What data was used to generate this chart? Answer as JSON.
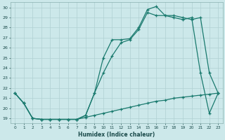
{
  "xlabel": "Humidex (Indice chaleur)",
  "ylabel": "",
  "background_color": "#cce8ea",
  "line_color": "#1a7a6e",
  "grid_color": "#b0d0d2",
  "xlim": [
    -0.5,
    23.5
  ],
  "ylim": [
    18.5,
    30.5
  ],
  "yticks": [
    19,
    20,
    21,
    22,
    23,
    24,
    25,
    26,
    27,
    28,
    29,
    30
  ],
  "xticks": [
    0,
    1,
    2,
    3,
    4,
    5,
    6,
    7,
    8,
    9,
    10,
    11,
    12,
    13,
    14,
    15,
    16,
    17,
    18,
    19,
    20,
    21,
    22,
    23
  ],
  "series1_x": [
    0,
    1,
    2,
    3,
    4,
    5,
    6,
    7,
    8,
    9,
    10,
    11,
    12,
    13,
    14,
    15,
    16,
    17,
    18,
    19,
    20,
    21,
    22,
    23
  ],
  "series1_y": [
    21.5,
    20.5,
    19.0,
    18.9,
    18.9,
    18.9,
    18.9,
    18.9,
    19.1,
    19.3,
    19.5,
    19.7,
    19.9,
    20.1,
    20.3,
    20.5,
    20.7,
    20.8,
    21.0,
    21.1,
    21.2,
    21.3,
    21.4,
    21.5
  ],
  "series2_x": [
    0,
    1,
    2,
    3,
    4,
    5,
    6,
    7,
    8,
    9,
    10,
    11,
    12,
    13,
    14,
    15,
    16,
    17,
    18,
    19,
    20,
    21,
    22,
    23
  ],
  "series2_y": [
    21.5,
    20.5,
    19.0,
    18.9,
    18.9,
    18.9,
    18.9,
    18.9,
    19.3,
    21.5,
    23.5,
    25.2,
    26.5,
    26.8,
    27.8,
    29.5,
    29.2,
    29.2,
    29.0,
    28.8,
    29.0,
    23.5,
    19.5,
    21.5
  ],
  "series3_x": [
    0,
    1,
    2,
    3,
    4,
    5,
    6,
    7,
    8,
    9,
    10,
    11,
    12,
    13,
    14,
    15,
    16,
    17,
    18,
    19,
    20,
    21,
    22,
    23
  ],
  "series3_y": [
    21.5,
    20.5,
    19.0,
    18.9,
    18.9,
    18.9,
    18.9,
    18.9,
    19.3,
    21.5,
    25.0,
    26.8,
    26.8,
    26.9,
    28.0,
    29.8,
    30.1,
    29.2,
    29.2,
    29.0,
    28.8,
    29.0,
    23.5,
    21.5
  ]
}
